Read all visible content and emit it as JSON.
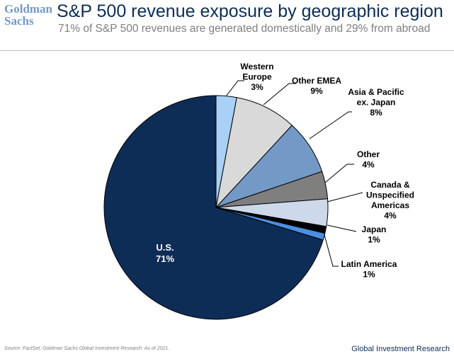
{
  "header": {
    "logo_line1": "Goldman",
    "logo_line2": "Sachs",
    "title": "S&P 500 revenue exposure by geographic region",
    "subtitle": "71% of S&P 500 revenues are generated domestically and 29% from abroad"
  },
  "chart_data": {
    "type": "pie",
    "title": "S&P 500 revenue exposure by geographic region",
    "unit": "%",
    "slices": [
      {
        "lines": [
          "Western",
          "Europe",
          "3%"
        ],
        "value": 3,
        "color": "#a9d0f5"
      },
      {
        "lines": [
          "Other EMEA",
          "9%"
        ],
        "value": 9,
        "color": "#d9d9d9"
      },
      {
        "lines": [
          "Asia & Pacific",
          "ex. Japan",
          "8%"
        ],
        "value": 8,
        "color": "#7399c6"
      },
      {
        "lines": [
          "Other",
          "4%"
        ],
        "value": 4,
        "color": "#7f7f7f"
      },
      {
        "lines": [
          "Canada &",
          "Unspecified",
          "Americas",
          "4%"
        ],
        "value": 4,
        "color": "#cdd9ea"
      },
      {
        "lines": [
          "Japan",
          "1%"
        ],
        "value": 1,
        "color": "#000000"
      },
      {
        "lines": [
          "Latin America",
          "1%"
        ],
        "value": 1,
        "color": "#4a90e2"
      },
      {
        "lines": [
          "U.S.",
          "71%"
        ],
        "value": 71,
        "color": "#0d2d56"
      }
    ]
  },
  "footer": {
    "source": "Source: FactSet, Goldman Sachs Global Investment Research. As of 2021.",
    "brand": "Global Investment Research"
  }
}
